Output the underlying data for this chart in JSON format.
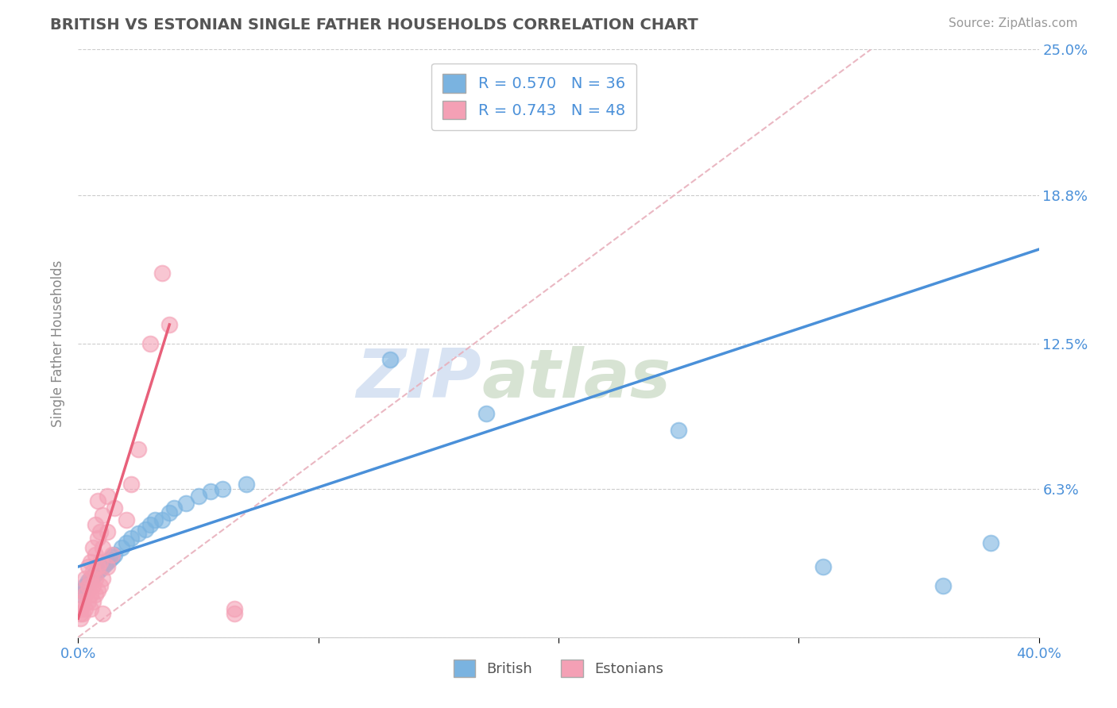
{
  "title": "BRITISH VS ESTONIAN SINGLE FATHER HOUSEHOLDS CORRELATION CHART",
  "source": "Source: ZipAtlas.com",
  "ylabel": "Single Father Households",
  "xlim": [
    0.0,
    0.4
  ],
  "ylim": [
    0.0,
    0.25
  ],
  "yticks": [
    0.0,
    0.063,
    0.125,
    0.188,
    0.25
  ],
  "ytick_labels": [
    "",
    "6.3%",
    "12.5%",
    "18.8%",
    "25.0%"
  ],
  "xticks": [
    0.0,
    0.1,
    0.2,
    0.3,
    0.4
  ],
  "xtick_labels": [
    "0.0%",
    "",
    "",
    "",
    "40.0%"
  ],
  "watermark_zip": "ZIP",
  "watermark_atlas": "atlas",
  "british_R": 0.57,
  "british_N": 36,
  "estonian_R": 0.743,
  "estonian_N": 48,
  "british_color": "#7ab3e0",
  "estonian_color": "#f4a0b5",
  "british_line_color": "#4a90d9",
  "estonian_line_color": "#e8607a",
  "diag_color": "#e8b0bc",
  "background_color": "#ffffff",
  "grid_color": "#cccccc",
  "title_color": "#555555",
  "british_scatter": [
    [
      0.001,
      0.018
    ],
    [
      0.002,
      0.02
    ],
    [
      0.003,
      0.022
    ],
    [
      0.004,
      0.024
    ],
    [
      0.005,
      0.025
    ],
    [
      0.006,
      0.026
    ],
    [
      0.007,
      0.027
    ],
    [
      0.008,
      0.028
    ],
    [
      0.009,
      0.029
    ],
    [
      0.01,
      0.03
    ],
    [
      0.011,
      0.031
    ],
    [
      0.012,
      0.032
    ],
    [
      0.013,
      0.033
    ],
    [
      0.014,
      0.034
    ],
    [
      0.015,
      0.035
    ],
    [
      0.018,
      0.038
    ],
    [
      0.02,
      0.04
    ],
    [
      0.022,
      0.042
    ],
    [
      0.025,
      0.044
    ],
    [
      0.028,
      0.046
    ],
    [
      0.03,
      0.048
    ],
    [
      0.032,
      0.05
    ],
    [
      0.035,
      0.05
    ],
    [
      0.038,
      0.053
    ],
    [
      0.04,
      0.055
    ],
    [
      0.045,
      0.057
    ],
    [
      0.05,
      0.06
    ],
    [
      0.055,
      0.062
    ],
    [
      0.06,
      0.063
    ],
    [
      0.07,
      0.065
    ],
    [
      0.13,
      0.118
    ],
    [
      0.17,
      0.095
    ],
    [
      0.25,
      0.088
    ],
    [
      0.31,
      0.03
    ],
    [
      0.36,
      0.022
    ],
    [
      0.38,
      0.04
    ]
  ],
  "estonian_scatter": [
    [
      0.001,
      0.01
    ],
    [
      0.001,
      0.012
    ],
    [
      0.001,
      0.008
    ],
    [
      0.002,
      0.015
    ],
    [
      0.002,
      0.01
    ],
    [
      0.002,
      0.02
    ],
    [
      0.003,
      0.012
    ],
    [
      0.003,
      0.018
    ],
    [
      0.003,
      0.025
    ],
    [
      0.004,
      0.015
    ],
    [
      0.004,
      0.022
    ],
    [
      0.004,
      0.03
    ],
    [
      0.005,
      0.012
    ],
    [
      0.005,
      0.018
    ],
    [
      0.005,
      0.025
    ],
    [
      0.005,
      0.032
    ],
    [
      0.006,
      0.015
    ],
    [
      0.006,
      0.022
    ],
    [
      0.006,
      0.028
    ],
    [
      0.006,
      0.038
    ],
    [
      0.007,
      0.018
    ],
    [
      0.007,
      0.025
    ],
    [
      0.007,
      0.035
    ],
    [
      0.007,
      0.048
    ],
    [
      0.008,
      0.02
    ],
    [
      0.008,
      0.03
    ],
    [
      0.008,
      0.042
    ],
    [
      0.008,
      0.058
    ],
    [
      0.009,
      0.022
    ],
    [
      0.009,
      0.032
    ],
    [
      0.009,
      0.045
    ],
    [
      0.01,
      0.025
    ],
    [
      0.01,
      0.038
    ],
    [
      0.01,
      0.052
    ],
    [
      0.01,
      0.01
    ],
    [
      0.012,
      0.03
    ],
    [
      0.012,
      0.045
    ],
    [
      0.012,
      0.06
    ],
    [
      0.014,
      0.035
    ],
    [
      0.015,
      0.055
    ],
    [
      0.02,
      0.05
    ],
    [
      0.022,
      0.065
    ],
    [
      0.025,
      0.08
    ],
    [
      0.03,
      0.125
    ],
    [
      0.035,
      0.155
    ],
    [
      0.038,
      0.133
    ],
    [
      0.065,
      0.01
    ],
    [
      0.065,
      0.012
    ]
  ],
  "british_legend_label": "British",
  "estonian_legend_label": "Estonians"
}
